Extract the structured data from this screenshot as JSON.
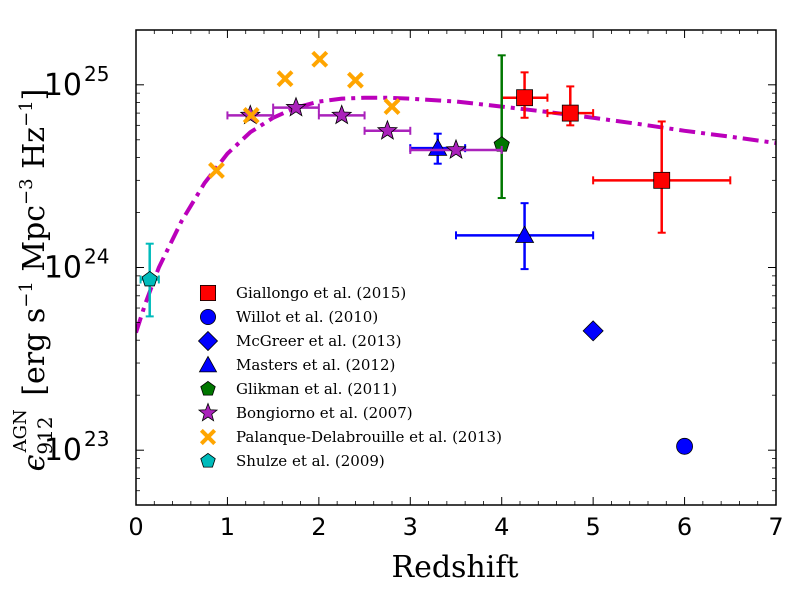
{
  "chart_data": {
    "type": "scatter",
    "title": "",
    "xlabel": "Redshift",
    "ylabel": {
      "symbol": "ϵ",
      "subscript": "912",
      "superscript": "AGN",
      "units": "[erg s",
      "units_parts": [
        "[erg",
        "s",
        "−1",
        "Mpc",
        "−3",
        "Hz",
        "−1",
        "]"
      ]
    },
    "xlim": [
      0,
      7
    ],
    "ylim_log10": [
      22.7,
      25.3
    ],
    "yscale": "log",
    "xticks": [
      0,
      1,
      2,
      3,
      4,
      5,
      6,
      7
    ],
    "yticks": [
      {
        "base": "10",
        "exp": "23",
        "log": 23
      },
      {
        "base": "10",
        "exp": "24",
        "log": 24
      },
      {
        "base": "10",
        "exp": "25",
        "log": 25
      }
    ],
    "legend_position": "lower-left",
    "series": [
      {
        "name": "Giallongo et al. (2015)",
        "marker": "square",
        "color": "#ff0000",
        "points": [
          {
            "x": 4.25,
            "y": 8.5e+24,
            "xerr": [
              0.25,
              0.25
            ],
            "ylo": 6.6e+24,
            "yhi": 1.17e+25
          },
          {
            "x": 4.75,
            "y": 7e+24,
            "xerr": [
              0.25,
              0.25
            ],
            "ylo": 6e+24,
            "yhi": 9.8e+24
          },
          {
            "x": 5.75,
            "y": 3e+24,
            "xerr": [
              0.75,
              0.75
            ],
            "ylo": 1.55e+24,
            "yhi": 6.3e+24
          }
        ]
      },
      {
        "name": "Willot et al. (2010)",
        "marker": "circle",
        "color": "#0000ff",
        "points": [
          {
            "x": 6.0,
            "y": 1.05e+23
          }
        ]
      },
      {
        "name": "McGreer et al. (2013)",
        "marker": "diamond",
        "color": "#0000ff",
        "points": [
          {
            "x": 5.0,
            "y": 4.5e+23
          }
        ]
      },
      {
        "name": "Masters et al. (2012)",
        "marker": "triangle",
        "color": "#0000ff",
        "points": [
          {
            "x": 3.3,
            "y": 4.5e+24,
            "xerr": [
              0.3,
              0.3
            ],
            "ylo": 3.7e+24,
            "yhi": 5.4e+24
          },
          {
            "x": 4.25,
            "y": 1.5e+24,
            "xerr": [
              0.75,
              0.75
            ],
            "ylo": 9.8e+23,
            "yhi": 2.25e+24
          }
        ]
      },
      {
        "name": "Glikman et al. (2011)",
        "marker": "pentagon",
        "color": "#007700",
        "points": [
          {
            "x": 4.0,
            "y": 4.7e+24,
            "ylo": 2.4e+24,
            "yhi": 1.45e+25
          }
        ]
      },
      {
        "name": "Bongiorno et al. (2007)",
        "marker": "star",
        "color": "#aa22bb",
        "points": [
          {
            "x": 1.25,
            "y": 6.8e+24,
            "xerr": [
              0.25,
              0.25
            ]
          },
          {
            "x": 1.75,
            "y": 7.5e+24,
            "xerr": [
              0.25,
              0.25
            ]
          },
          {
            "x": 2.25,
            "y": 6.8e+24,
            "xerr": [
              0.25,
              0.25
            ]
          },
          {
            "x": 2.75,
            "y": 5.6e+24,
            "xerr": [
              0.25,
              0.25
            ]
          },
          {
            "x": 3.5,
            "y": 4.4e+24,
            "xerr": [
              0.5,
              0.5
            ]
          }
        ]
      },
      {
        "name": "Palanque-Delabrouille et al. (2013)",
        "marker": "x",
        "color": "#ffa500",
        "points": [
          {
            "x": 0.88,
            "y": 3.4e+24
          },
          {
            "x": 1.26,
            "y": 6.8e+24
          },
          {
            "x": 1.63,
            "y": 1.08e+25
          },
          {
            "x": 2.01,
            "y": 1.38e+25
          },
          {
            "x": 2.4,
            "y": 1.06e+25
          },
          {
            "x": 2.8,
            "y": 7.6e+24
          }
        ]
      },
      {
        "name": "Shulze et al. (2009)",
        "marker": "pentagon",
        "color": "#00bbbb",
        "points": [
          {
            "x": 0.15,
            "y": 8.6e+23,
            "xerr": [
              0.1,
              0.1
            ],
            "ylo": 5.4e+23,
            "yhi": 1.35e+24
          }
        ]
      }
    ],
    "fit_curve": {
      "color": "#bb00bb",
      "style": "dash-dot",
      "x": [
        0.0,
        0.1,
        0.25,
        0.5,
        0.75,
        1.0,
        1.25,
        1.5,
        1.75,
        2.0,
        2.25,
        2.5,
        2.75,
        3.0,
        3.5,
        4.0,
        4.5,
        5.0,
        5.5,
        6.0,
        6.5,
        7.0
      ],
      "y": [
        4.4e+23,
        6.3e+23,
        1e+24,
        1.8e+24,
        2.9e+24,
        4.2e+24,
        5.5e+24,
        6.6e+24,
        7.5e+24,
        8.1e+24,
        8.4e+24,
        8.5e+24,
        8.5e+24,
        8.4e+24,
        8.1e+24,
        7.6e+24,
        7.1e+24,
        6.6e+24,
        6.1e+24,
        5.6e+24,
        5.2e+24,
        4.8e+24
      ]
    }
  }
}
